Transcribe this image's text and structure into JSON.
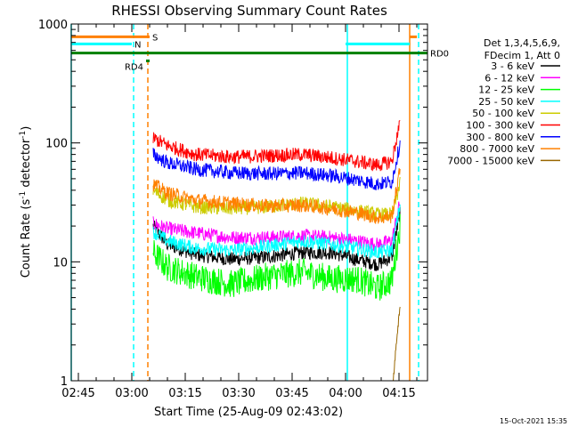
{
  "chart_data": {
    "type": "line",
    "title": "RHESSI Observing Summary Count Rates",
    "xlabel": "Start Time (25-Aug-09 02:43:02)",
    "ylabel_parts": [
      "Count Rate (s",
      "-1",
      " detector",
      "-1",
      ")"
    ],
    "yscale": "log",
    "ylim": [
      1,
      1000
    ],
    "xlim_minutes": [
      0,
      100
    ],
    "x_ticks": [
      {
        "label": "02:45",
        "t": 2
      },
      {
        "label": "03:00",
        "t": 17
      },
      {
        "label": "03:15",
        "t": 32
      },
      {
        "label": "03:30",
        "t": 47
      },
      {
        "label": "03:45",
        "t": 62
      },
      {
        "label": "04:00",
        "t": 77
      },
      {
        "label": "04:15",
        "t": 92
      }
    ],
    "y_ticks": [
      {
        "label": "1",
        "v": 1
      },
      {
        "label": "10",
        "v": 10
      },
      {
        "label": "100",
        "v": 100
      },
      {
        "label": "1000",
        "v": 1000
      }
    ],
    "legend": {
      "header": [
        "Det 1,3,4,5,6,9,",
        "FDecim 1, Att 0"
      ],
      "position": "right"
    },
    "series": [
      {
        "name": "3 - 6 keV",
        "color": "#000000",
        "x": [
          23,
          27,
          35,
          45,
          55,
          65,
          73,
          80,
          86,
          90,
          92.3
        ],
        "y": [
          20,
          14,
          11.5,
          10.5,
          11,
          12,
          12,
          10.5,
          9.5,
          11,
          26
        ]
      },
      {
        "name": "6 - 12 keV",
        "color": "#ff00ff",
        "x": [
          23,
          27,
          35,
          45,
          55,
          65,
          73,
          80,
          86,
          90,
          92.3
        ],
        "y": [
          21,
          19,
          17.5,
          16,
          16,
          16.5,
          16,
          15,
          14,
          15,
          32
        ]
      },
      {
        "name": "12 - 25 keV",
        "color": "#00ff00",
        "x": [
          23,
          27,
          35,
          45,
          55,
          65,
          73,
          80,
          86,
          90,
          92.3
        ],
        "y": [
          12,
          9,
          7.5,
          6.5,
          7.5,
          8.2,
          7.2,
          7.2,
          6,
          7,
          20
        ]
      },
      {
        "name": "25 - 50 keV",
        "color": "#00ffff",
        "x": [
          23,
          27,
          35,
          45,
          55,
          65,
          73,
          80,
          86,
          90,
          92.3
        ],
        "y": [
          18,
          15,
          13,
          12.5,
          13.5,
          15,
          14,
          13,
          12,
          12.5,
          30
        ]
      },
      {
        "name": "50 - 100 keV",
        "color": "#cccc00",
        "x": [
          23,
          27,
          35,
          45,
          55,
          65,
          73,
          80,
          86,
          90,
          92.3
        ],
        "y": [
          40,
          33,
          29,
          28,
          29,
          31,
          29,
          27,
          25,
          25,
          45
        ]
      },
      {
        "name": "100 - 300 keV",
        "color": "#ff0000",
        "x": [
          23,
          27,
          35,
          45,
          55,
          65,
          73,
          80,
          86,
          90,
          92.3
        ],
        "y": [
          110,
          95,
          80,
          76,
          78,
          80,
          75,
          70,
          65,
          70,
          150
        ]
      },
      {
        "name": "300 - 800 keV",
        "color": "#0000ff",
        "x": [
          23,
          27,
          35,
          45,
          55,
          65,
          73,
          80,
          86,
          90,
          92.3
        ],
        "y": [
          80,
          68,
          60,
          56,
          55,
          56,
          53,
          49,
          45,
          47,
          100
        ]
      },
      {
        "name": "800 - 7000 keV",
        "color": "#ff8000",
        "x": [
          23,
          27,
          35,
          45,
          55,
          65,
          73,
          80,
          86,
          90,
          92.3
        ],
        "y": [
          45,
          38,
          33,
          31,
          29.5,
          30,
          28,
          26,
          23.5,
          24,
          60
        ]
      },
      {
        "name": "7000 - 15000 keV",
        "color": "#996600",
        "x": [
          90.3,
          90.8,
          91.2,
          91.5,
          91.8,
          92.0,
          92.3
        ],
        "y": [
          1,
          1.4,
          2,
          2.5,
          3.0,
          3.5,
          4.0
        ]
      }
    ],
    "flags": [
      {
        "label": "S",
        "color": "#ff8000",
        "v": 780,
        "segments": [
          [
            0,
            22
          ],
          [
            95,
            97
          ]
        ]
      },
      {
        "label": "N",
        "color": "#00ffff",
        "v": 680,
        "segments": [
          [
            0,
            17
          ],
          [
            77,
            95
          ]
        ]
      },
      {
        "label": "RD0",
        "color": "#008000",
        "v": 570,
        "segments": [
          [
            0,
            100
          ]
        ]
      },
      {
        "label": "RD4",
        "color": "#008000",
        "v": 490,
        "segments": [
          [
            21,
            22
          ]
        ]
      }
    ],
    "vlines": [
      {
        "t": 0,
        "color": "#00ffff",
        "style": "solid"
      },
      {
        "t": 17.5,
        "color": "#00ffff",
        "style": "dashed"
      },
      {
        "t": 21.5,
        "color": "#ff8000",
        "style": "dashed"
      },
      {
        "t": 77.5,
        "color": "#00ffff",
        "style": "solid"
      },
      {
        "t": 95,
        "color": "#ff8000",
        "style": "solid"
      },
      {
        "t": 97.5,
        "color": "#00ffff",
        "style": "dashed"
      }
    ],
    "timestamp": "15-Oct-2021 15:35"
  }
}
